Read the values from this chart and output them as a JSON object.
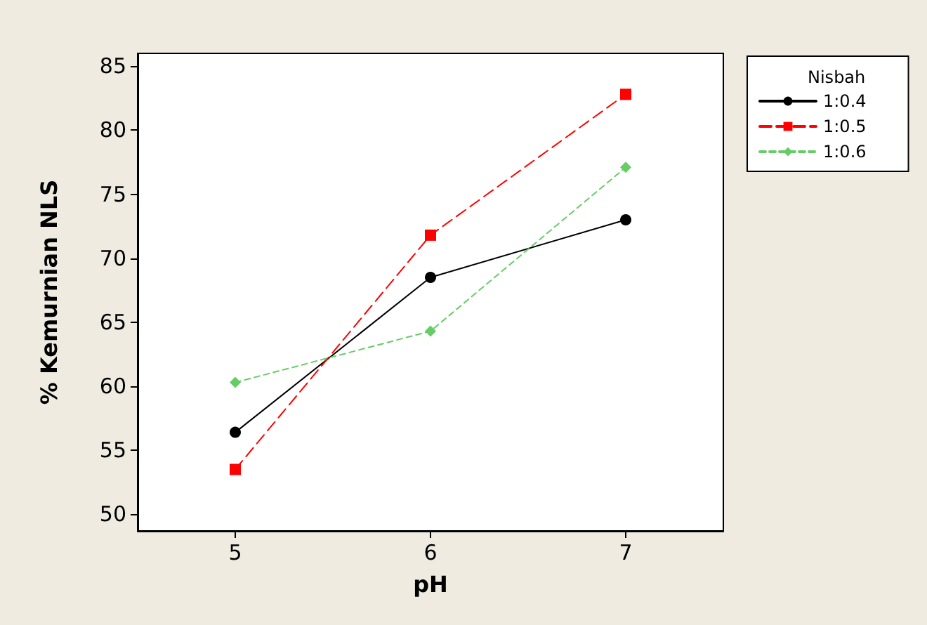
{
  "chart_data": {
    "type": "line",
    "xlabel": "pH",
    "ylabel": "% Kemurnian NLS",
    "legend_title": "Nisbah",
    "legend": "right",
    "grid": false,
    "x": [
      5,
      6,
      7
    ],
    "xlim": [
      4.5,
      7.5
    ],
    "xticks": [
      5,
      6,
      7
    ],
    "ylim": [
      48.7,
      86
    ],
    "yticks": [
      50,
      55,
      60,
      65,
      70,
      75,
      80,
      85
    ],
    "series": [
      {
        "name": "1:0.4",
        "color": "#000000",
        "marker": "circle",
        "line_style": "solid",
        "values": [
          56.4,
          68.5,
          73.0
        ]
      },
      {
        "name": "1:0.5",
        "color": "#ff0000",
        "marker": "square",
        "line_style": "dashed",
        "values": [
          53.5,
          71.8,
          82.8
        ]
      },
      {
        "name": "1:0.6",
        "color": "#66cc66",
        "marker": "diamond",
        "line_style": "dotted",
        "values": [
          60.3,
          64.3,
          77.1
        ]
      }
    ]
  }
}
